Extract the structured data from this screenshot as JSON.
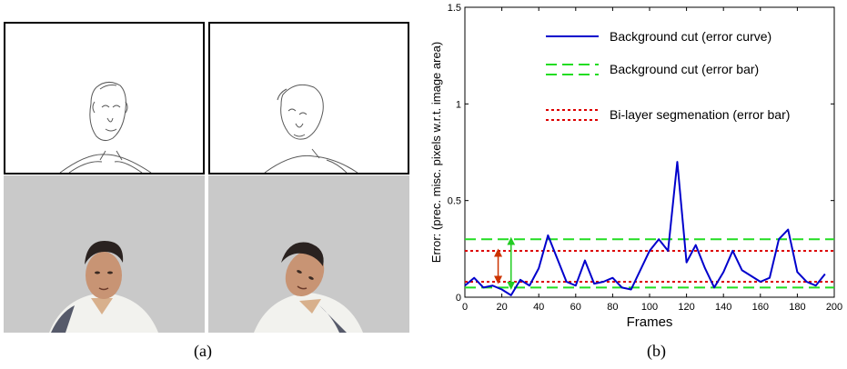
{
  "figure": {
    "caption_a": "(a)",
    "caption_b": "(b)"
  },
  "colors": {
    "curve": "#0000cc",
    "bg_cut_bar": "#22dd22",
    "bilayer_bar": "#dd0000",
    "arrow_green": "#22cc22",
    "arrow_red": "#cc3300",
    "photo_bg": "#c9c9c9"
  },
  "chart_data": {
    "type": "line",
    "xlabel": "Frames",
    "ylabel": "Error: (prec. misc. pixels w.r.t. image area)",
    "xlim": [
      0,
      200
    ],
    "ylim": [
      0,
      1.5
    ],
    "xticks": [
      0,
      20,
      40,
      60,
      80,
      100,
      120,
      140,
      160,
      180,
      200
    ],
    "yticks": [
      {
        "value": 0,
        "label": "0"
      },
      {
        "value": 0.5,
        "label": "0.5"
      },
      {
        "value": 1,
        "label": "1"
      },
      {
        "value": 1.5,
        "label": "1.5"
      }
    ],
    "legend_position": "top-right",
    "series": [
      {
        "name": "Background cut (error curve)",
        "style": "solid",
        "color": "#0000cc",
        "x": [
          0,
          5,
          10,
          15,
          20,
          25,
          30,
          35,
          40,
          45,
          50,
          55,
          60,
          65,
          70,
          75,
          80,
          85,
          90,
          95,
          100,
          105,
          110,
          115,
          120,
          125,
          130,
          135,
          140,
          145,
          150,
          155,
          160,
          165,
          170,
          175,
          180,
          185,
          190,
          195
        ],
        "values": [
          0.06,
          0.1,
          0.05,
          0.06,
          0.04,
          0.01,
          0.09,
          0.06,
          0.15,
          0.32,
          0.2,
          0.08,
          0.06,
          0.19,
          0.07,
          0.08,
          0.1,
          0.05,
          0.04,
          0.14,
          0.24,
          0.3,
          0.24,
          0.7,
          0.18,
          0.27,
          0.15,
          0.05,
          0.13,
          0.24,
          0.14,
          0.11,
          0.08,
          0.1,
          0.3,
          0.35,
          0.13,
          0.08,
          0.06,
          0.12
        ]
      }
    ],
    "bands": [
      {
        "name": "Background cut (error bar)",
        "style": "dashed",
        "color": "#22dd22",
        "lower": 0.05,
        "upper": 0.3
      },
      {
        "name": "Bi-layer segmenation (error bar)",
        "style": "dotted",
        "color": "#dd0000",
        "lower": 0.08,
        "upper": 0.24
      }
    ]
  }
}
